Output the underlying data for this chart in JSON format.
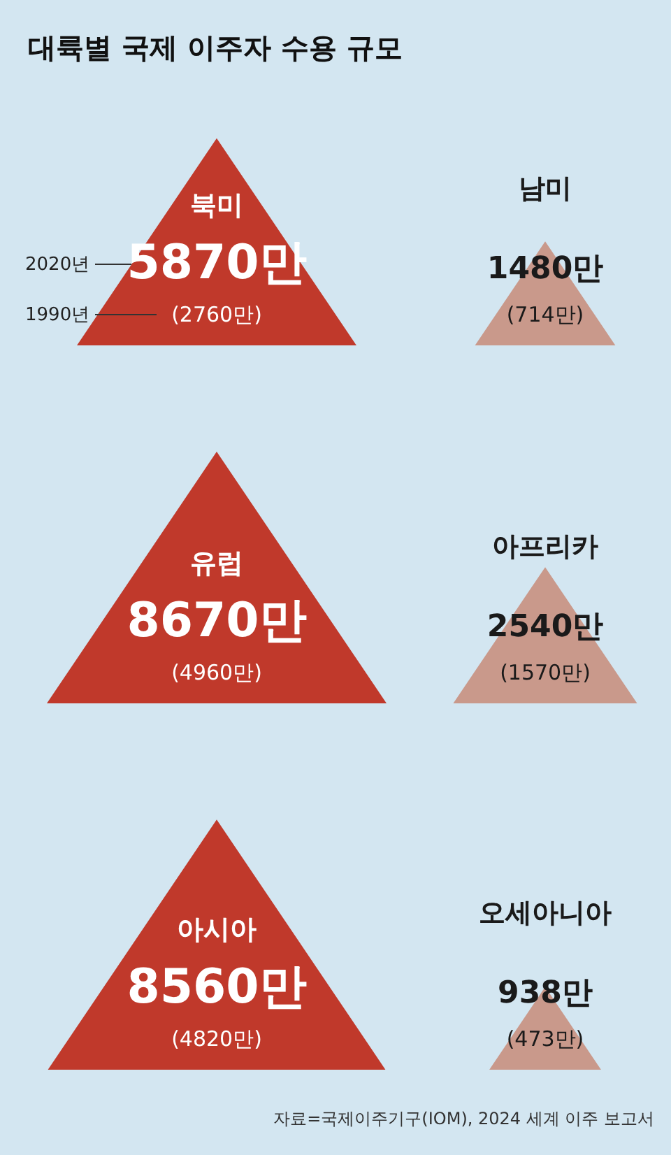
{
  "chart_data": {
    "type": "other",
    "title": "대륙별 국제 이주자 수용 규모",
    "categories": [
      "북미",
      "남미",
      "유럽",
      "아프리카",
      "아시아",
      "오세아니아"
    ],
    "series": [
      {
        "name": "2020년",
        "colors": [
          "#c0392b",
          "#c9998b",
          "#c0392b",
          "#c9998b",
          "#c0392b",
          "#c9998b"
        ],
        "values": [
          5870,
          1480,
          8670,
          2540,
          8560,
          938
        ],
        "value_labels": [
          "5870만",
          "1480만",
          "8670만",
          "2540만",
          "8560만",
          "938만"
        ]
      },
      {
        "name": "1990년",
        "values": [
          2760,
          714,
          4960,
          1570,
          4820,
          473
        ],
        "value_labels": [
          "(2760만)",
          "(714만)",
          "(4960만)",
          "(1570만)",
          "(4820만)",
          "(473만)"
        ]
      }
    ],
    "annotations": [
      "자료=국제이주기구(IOM), 2024 세계 이주 보고서"
    ]
  }
}
